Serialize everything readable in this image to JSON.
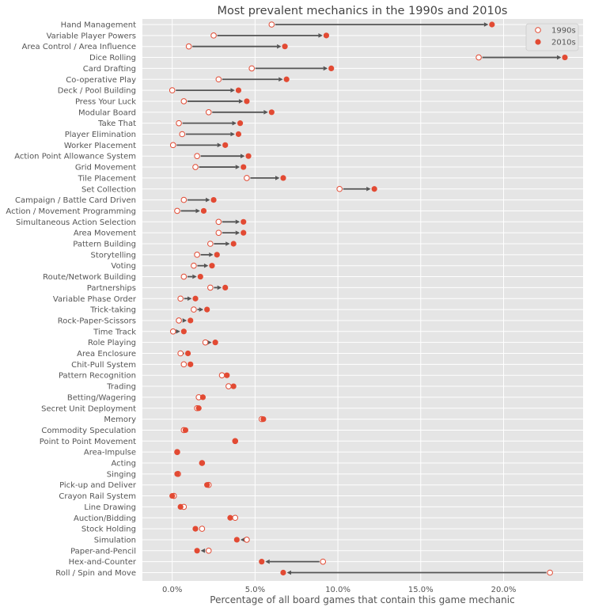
{
  "chart_data": {
    "type": "dumbbell",
    "title": "Most prevalent mechanics in the 1990s and 2010s",
    "xlabel": "Percentage of all board games that contain this game mechanic",
    "ylabel": "",
    "xlim": [
      -1.8,
      24.8
    ],
    "xticks": [
      0,
      5,
      10,
      15,
      20
    ],
    "xtick_labels": [
      "0.0%",
      "5.0%",
      "10.0%",
      "15.0%",
      "20.0%"
    ],
    "grid": true,
    "legend_position": "top-right",
    "colors": {
      "accent": "#E24A33",
      "arrow": "#555555",
      "plot_bg": "#E5E5E5",
      "grid": "#FFFFFF"
    },
    "series": [
      {
        "name": "1990s",
        "marker": "open-circle"
      },
      {
        "name": "2010s",
        "marker": "filled-circle"
      }
    ],
    "categories": [
      "Hand Management",
      "Variable Player Powers",
      "Area Control / Area Influence",
      "Dice Rolling",
      "Card Drafting",
      "Co-operative Play",
      "Deck / Pool Building",
      "Press Your Luck",
      "Modular Board",
      "Take That",
      "Player Elimination",
      "Worker Placement",
      "Action Point Allowance System",
      "Grid Movement",
      "Tile Placement",
      "Set Collection",
      "Campaign / Battle Card Driven",
      "Action / Movement Programming",
      "Simultaneous Action Selection",
      "Area Movement",
      "Pattern Building",
      "Storytelling",
      "Voting",
      "Route/Network Building",
      "Partnerships",
      "Variable Phase Order",
      "Trick-taking",
      "Rock-Paper-Scissors",
      "Time Track",
      "Role Playing",
      "Area Enclosure",
      "Chit-Pull System",
      "Pattern Recognition",
      "Trading",
      "Betting/Wagering",
      "Secret Unit Deployment",
      "Memory",
      "Commodity Speculation",
      "Point to Point Movement",
      "Area-Impulse",
      "Acting",
      "Singing",
      "Pick-up and Deliver",
      "Crayon Rail System",
      "Line Drawing",
      "Auction/Bidding",
      "Stock Holding",
      "Simulation",
      "Paper-and-Pencil",
      "Hex-and-Counter",
      "Roll / Spin and Move"
    ],
    "values_1990s": [
      6.0,
      2.5,
      1.0,
      18.5,
      4.8,
      2.8,
      0.0,
      0.7,
      2.2,
      0.4,
      0.6,
      0.05,
      1.5,
      1.4,
      4.5,
      10.1,
      0.7,
      0.3,
      2.8,
      2.8,
      2.3,
      1.5,
      1.3,
      0.7,
      2.3,
      0.5,
      1.3,
      0.4,
      0.05,
      2.0,
      0.5,
      0.7,
      3.0,
      3.4,
      1.6,
      1.5,
      5.4,
      0.7,
      3.8,
      0.3,
      1.8,
      0.35,
      2.2,
      0.1,
      0.7,
      3.8,
      1.8,
      4.5,
      2.2,
      9.1,
      22.8
    ],
    "values_2010s": [
      19.3,
      9.3,
      6.8,
      23.7,
      9.6,
      6.9,
      4.0,
      4.5,
      6.0,
      4.1,
      4.0,
      3.2,
      4.6,
      4.3,
      6.7,
      12.2,
      2.5,
      1.9,
      4.3,
      4.3,
      3.7,
      2.7,
      2.4,
      1.7,
      3.2,
      1.4,
      2.1,
      1.1,
      0.7,
      2.6,
      0.95,
      1.1,
      3.3,
      3.7,
      1.85,
      1.6,
      5.5,
      0.8,
      3.8,
      0.3,
      1.8,
      0.3,
      2.1,
      0.0,
      0.5,
      3.5,
      1.4,
      3.9,
      1.5,
      5.4,
      6.7
    ]
  }
}
